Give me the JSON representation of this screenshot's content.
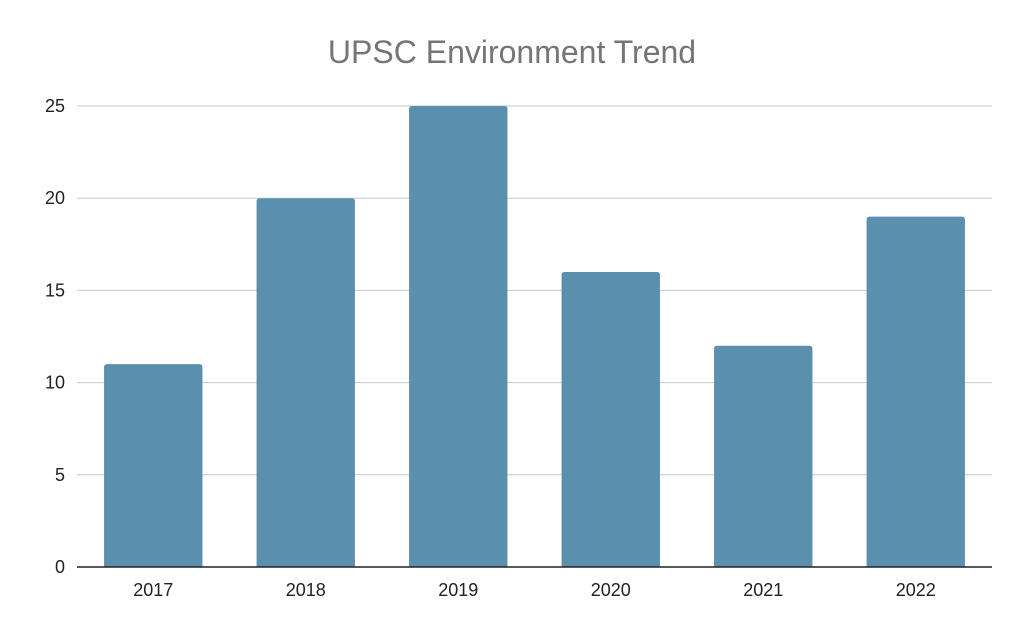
{
  "chart_data": {
    "type": "bar",
    "title": "UPSC Environment Trend",
    "xlabel": "",
    "ylabel": "",
    "categories": [
      "2017",
      "2018",
      "2019",
      "2020",
      "2021",
      "2022"
    ],
    "values": [
      11,
      20,
      25,
      16,
      12,
      19
    ],
    "ylim": [
      0,
      25
    ],
    "yticks": [
      0,
      5,
      10,
      15,
      20,
      25
    ],
    "grid": true,
    "legend": "none",
    "colors": {
      "bar": "#5a8fae",
      "grid": "#c8c8c8",
      "axis": "#222222",
      "title": "#757575"
    }
  }
}
